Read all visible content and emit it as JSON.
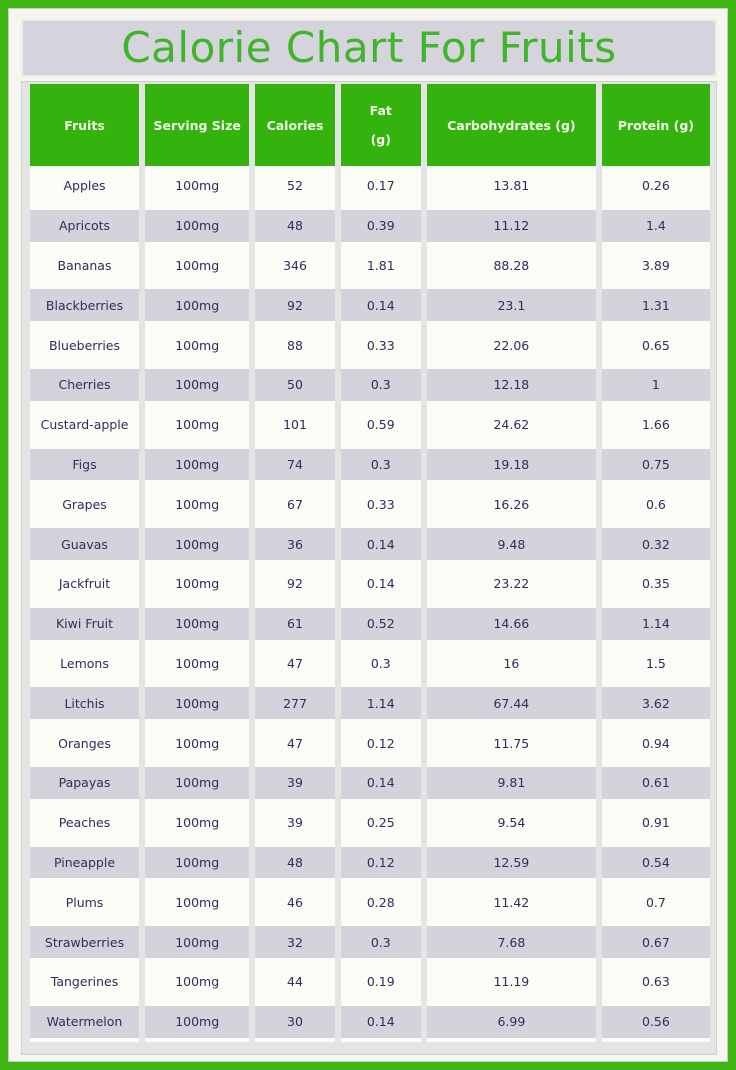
{
  "title": "Calorie Chart For Fruits",
  "colors": {
    "border_green": "#3db612",
    "header_green": "#34b30f",
    "title_green": "#3fb52b",
    "stripe_gray": "#d4d2da",
    "text": "#2c305a"
  },
  "columns": [
    "Fruits",
    "Serving Size",
    "Calories",
    "Fat (g)",
    "Carbohydrates (g)",
    "Protein (g)"
  ],
  "fat_header": {
    "line1": "Fat",
    "line2": "(g)"
  },
  "rows": [
    [
      "Apples",
      "100mg",
      "52",
      "0.17",
      "13.81",
      "0.26"
    ],
    [
      "Apricots",
      "100mg",
      "48",
      "0.39",
      "11.12",
      "1.4"
    ],
    [
      "Bananas",
      "100mg",
      "346",
      "1.81",
      "88.28",
      "3.89"
    ],
    [
      "Blackberries",
      "100mg",
      "92",
      "0.14",
      "23.1",
      "1.31"
    ],
    [
      "Blueberries",
      "100mg",
      "88",
      "0.33",
      "22.06",
      "0.65"
    ],
    [
      "Cherries",
      "100mg",
      "50",
      "0.3",
      "12.18",
      "1"
    ],
    [
      "Custard-apple",
      "100mg",
      "101",
      "0.59",
      "24.62",
      "1.66"
    ],
    [
      "Figs",
      "100mg",
      "74",
      "0.3",
      "19.18",
      "0.75"
    ],
    [
      "Grapes",
      "100mg",
      "67",
      "0.33",
      "16.26",
      "0.6"
    ],
    [
      "Guavas",
      "100mg",
      "36",
      "0.14",
      "9.48",
      "0.32"
    ],
    [
      "Jackfruit",
      "100mg",
      "92",
      "0.14",
      "23.22",
      "0.35"
    ],
    [
      "Kiwi Fruit",
      "100mg",
      "61",
      "0.52",
      "14.66",
      "1.14"
    ],
    [
      "Lemons",
      "100mg",
      "47",
      "0.3",
      "16",
      "1.5"
    ],
    [
      "Litchis",
      "100mg",
      "277",
      "1.14",
      "67.44",
      "3.62"
    ],
    [
      "Oranges",
      "100mg",
      "47",
      "0.12",
      "11.75",
      "0.94"
    ],
    [
      "Papayas",
      "100mg",
      "39",
      "0.14",
      "9.81",
      "0.61"
    ],
    [
      "Peaches",
      "100mg",
      "39",
      "0.25",
      "9.54",
      "0.91"
    ],
    [
      "Pineapple",
      "100mg",
      "48",
      "0.12",
      "12.59",
      "0.54"
    ],
    [
      "Plums",
      "100mg",
      "46",
      "0.28",
      "11.42",
      "0.7"
    ],
    [
      "Strawberries",
      "100mg",
      "32",
      "0.3",
      "7.68",
      "0.67"
    ],
    [
      "Tangerines",
      "100mg",
      "44",
      "0.19",
      "11.19",
      "0.63"
    ],
    [
      "Watermelon",
      "100mg",
      "30",
      "0.14",
      "6.99",
      "0.56"
    ]
  ]
}
